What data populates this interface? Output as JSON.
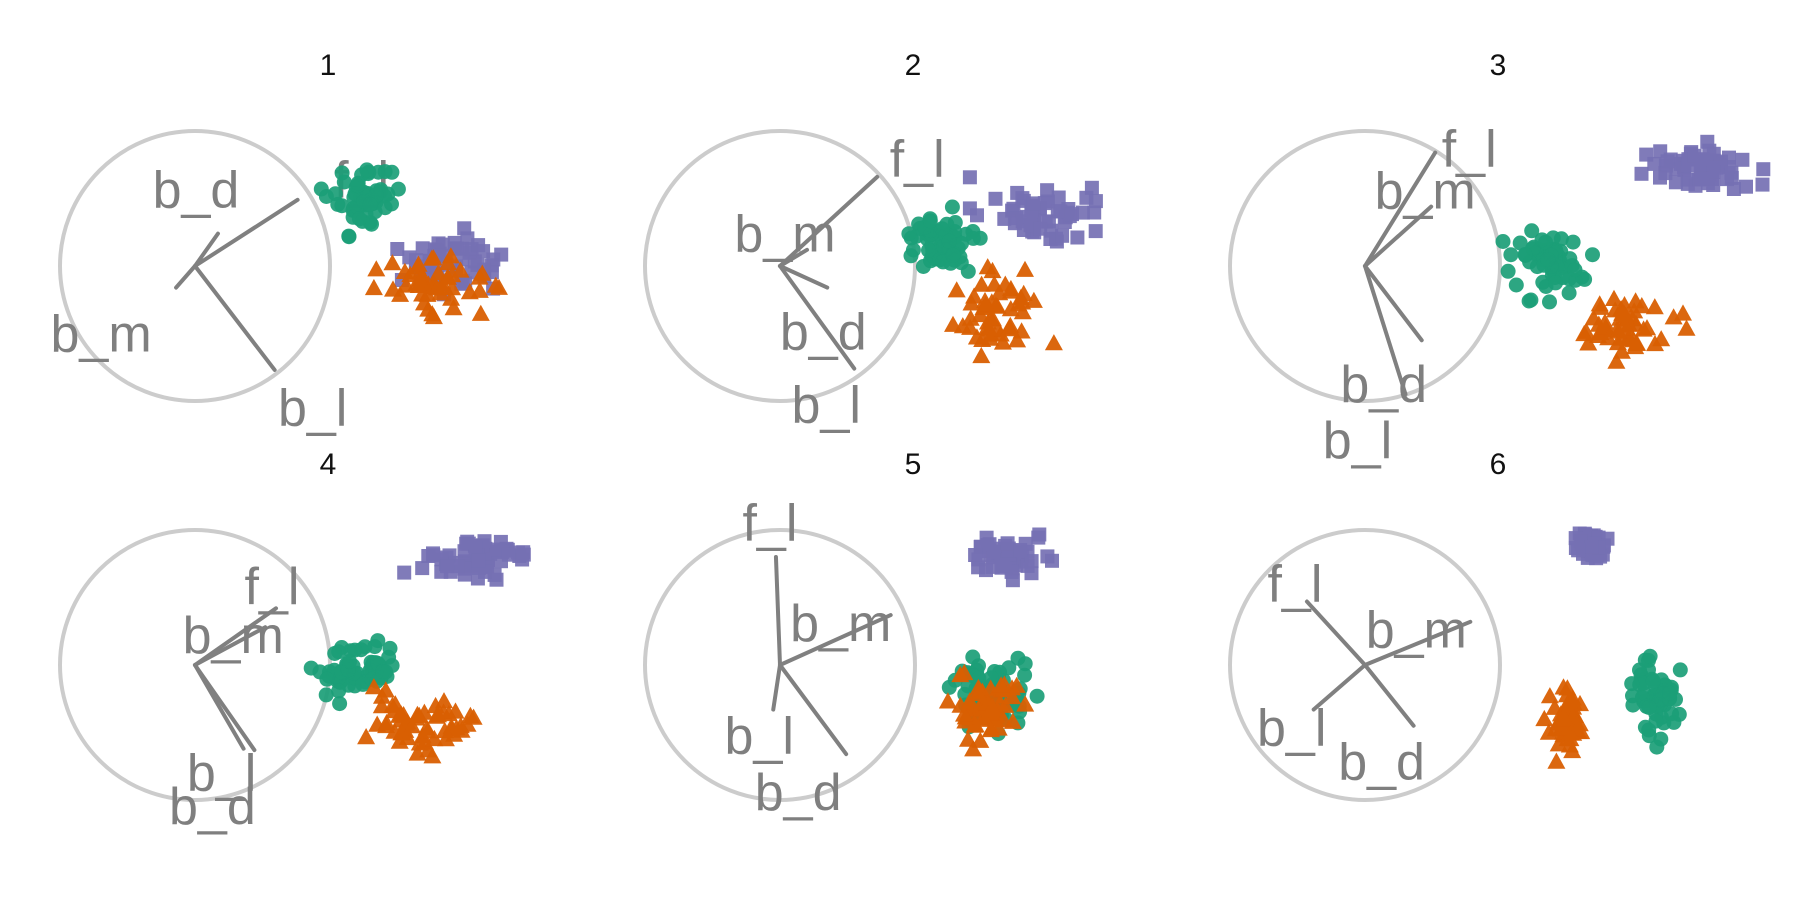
{
  "figure": {
    "colors": {
      "circle": "#cccccc",
      "axes": "#808080",
      "green": "#1b9e77",
      "orange": "#d95f02",
      "purple": "#7570b3"
    }
  },
  "chart_data": [
    {
      "type": "scatter",
      "title": "1",
      "axes": [
        {
          "label": "f_l",
          "end": [
            0.76,
            0.49
          ]
        },
        {
          "label": "b_d",
          "end": [
            0.17,
            0.24
          ]
        },
        {
          "label": "b_m",
          "end": [
            -0.14,
            -0.16
          ]
        },
        {
          "label": "b_l",
          "end": [
            0.59,
            -0.77
          ]
        }
      ],
      "series": [
        {
          "color": "#1b9e77",
          "marker": "circle",
          "center": [
            1.25,
            0.48
          ],
          "spread": [
            0.22,
            0.22
          ],
          "count": 60,
          "seed": 11
        },
        {
          "color": "#d95f02",
          "marker": "triangle",
          "center": [
            1.78,
            -0.12
          ],
          "spread": [
            0.33,
            0.18
          ],
          "count": 50,
          "seed": 12
        },
        {
          "color": "#7570b3",
          "marker": "square",
          "center": [
            1.9,
            0.05
          ],
          "spread": [
            0.3,
            0.2
          ],
          "count": 50,
          "seed": 13
        }
      ]
    },
    {
      "type": "scatter",
      "title": "2",
      "axes": [
        {
          "label": "f_l",
          "end": [
            0.72,
            0.66
          ]
        },
        {
          "label": "b_m",
          "end": [
            0.2,
            0.12
          ]
        },
        {
          "label": "b_d",
          "end": [
            0.35,
            -0.16
          ]
        },
        {
          "label": "b_l",
          "end": [
            0.55,
            -0.76
          ]
        }
      ],
      "series": [
        {
          "color": "#1b9e77",
          "marker": "circle",
          "center": [
            1.22,
            0.18
          ],
          "spread": [
            0.22,
            0.18
          ],
          "count": 60,
          "seed": 21
        },
        {
          "color": "#d95f02",
          "marker": "triangle",
          "center": [
            1.6,
            -0.35
          ],
          "spread": [
            0.3,
            0.25
          ],
          "count": 50,
          "seed": 22
        },
        {
          "color": "#7570b3",
          "marker": "square",
          "center": [
            1.95,
            0.4
          ],
          "spread": [
            0.38,
            0.18
          ],
          "count": 55,
          "seed": 23
        }
      ]
    },
    {
      "type": "scatter",
      "title": "3",
      "axes": [
        {
          "label": "f_l",
          "end": [
            0.52,
            0.84
          ]
        },
        {
          "label": "b_m",
          "end": [
            0.49,
            0.44
          ]
        },
        {
          "label": "b_d",
          "end": [
            0.42,
            -0.55
          ]
        },
        {
          "label": "b_l",
          "end": [
            0.3,
            -0.95
          ]
        }
      ],
      "series": [
        {
          "color": "#1b9e77",
          "marker": "circle",
          "center": [
            1.38,
            0.02
          ],
          "spread": [
            0.25,
            0.2
          ],
          "count": 60,
          "seed": 31
        },
        {
          "color": "#d95f02",
          "marker": "triangle",
          "center": [
            1.92,
            -0.45
          ],
          "spread": [
            0.35,
            0.18
          ],
          "count": 50,
          "seed": 32
        },
        {
          "color": "#7570b3",
          "marker": "square",
          "center": [
            2.45,
            0.72
          ],
          "spread": [
            0.35,
            0.14
          ],
          "count": 60,
          "seed": 33
        }
      ]
    },
    {
      "type": "scatter",
      "title": "4",
      "axes": [
        {
          "label": "f_l",
          "end": [
            0.6,
            0.42
          ]
        },
        {
          "label": "b_m",
          "end": [
            0.52,
            0.28
          ]
        },
        {
          "label": "b_l",
          "end": [
            0.36,
            -0.62
          ]
        },
        {
          "label": "b_d",
          "end": [
            0.44,
            -0.63
          ]
        }
      ],
      "series": [
        {
          "color": "#1b9e77",
          "marker": "circle",
          "center": [
            1.2,
            -0.05
          ],
          "spread": [
            0.28,
            0.2
          ],
          "count": 60,
          "seed": 41
        },
        {
          "color": "#d95f02",
          "marker": "triangle",
          "center": [
            1.68,
            -0.45
          ],
          "spread": [
            0.35,
            0.2
          ],
          "count": 55,
          "seed": 42
        },
        {
          "color": "#7570b3",
          "marker": "square",
          "center": [
            2.05,
            0.78
          ],
          "spread": [
            0.35,
            0.12
          ],
          "count": 60,
          "seed": 43
        }
      ]
    },
    {
      "type": "scatter",
      "title": "5",
      "axes": [
        {
          "label": "f_l",
          "end": [
            -0.03,
            0.8
          ]
        },
        {
          "label": "b_m",
          "end": [
            0.82,
            0.37
          ]
        },
        {
          "label": "b_l",
          "end": [
            -0.05,
            -0.33
          ]
        },
        {
          "label": "b_d",
          "end": [
            0.49,
            -0.66
          ]
        }
      ],
      "series": [
        {
          "color": "#1b9e77",
          "marker": "circle",
          "center": [
            1.55,
            -0.2
          ],
          "spread": [
            0.25,
            0.22
          ],
          "count": 60,
          "seed": 51
        },
        {
          "color": "#d95f02",
          "marker": "triangle",
          "center": [
            1.53,
            -0.35
          ],
          "spread": [
            0.2,
            0.22
          ],
          "count": 55,
          "seed": 52
        },
        {
          "color": "#7570b3",
          "marker": "square",
          "center": [
            1.7,
            0.8
          ],
          "spread": [
            0.22,
            0.12
          ],
          "count": 55,
          "seed": 53
        }
      ]
    },
    {
      "type": "scatter",
      "title": "6",
      "axes": [
        {
          "label": "f_l",
          "end": [
            -0.43,
            0.47
          ]
        },
        {
          "label": "b_m",
          "end": [
            0.78,
            0.32
          ]
        },
        {
          "label": "b_l",
          "end": [
            -0.38,
            -0.33
          ]
        },
        {
          "label": "b_d",
          "end": [
            0.36,
            -0.45
          ]
        }
      ],
      "series": [
        {
          "color": "#1b9e77",
          "marker": "circle",
          "center": [
            2.16,
            -0.25
          ],
          "spread": [
            0.18,
            0.26
          ],
          "count": 60,
          "seed": 61
        },
        {
          "color": "#d95f02",
          "marker": "triangle",
          "center": [
            1.5,
            -0.4
          ],
          "spread": [
            0.12,
            0.22
          ],
          "count": 50,
          "seed": 62
        },
        {
          "color": "#7570b3",
          "marker": "square",
          "center": [
            1.68,
            0.88
          ],
          "spread": [
            0.12,
            0.11
          ],
          "count": 45,
          "seed": 63
        }
      ]
    }
  ]
}
